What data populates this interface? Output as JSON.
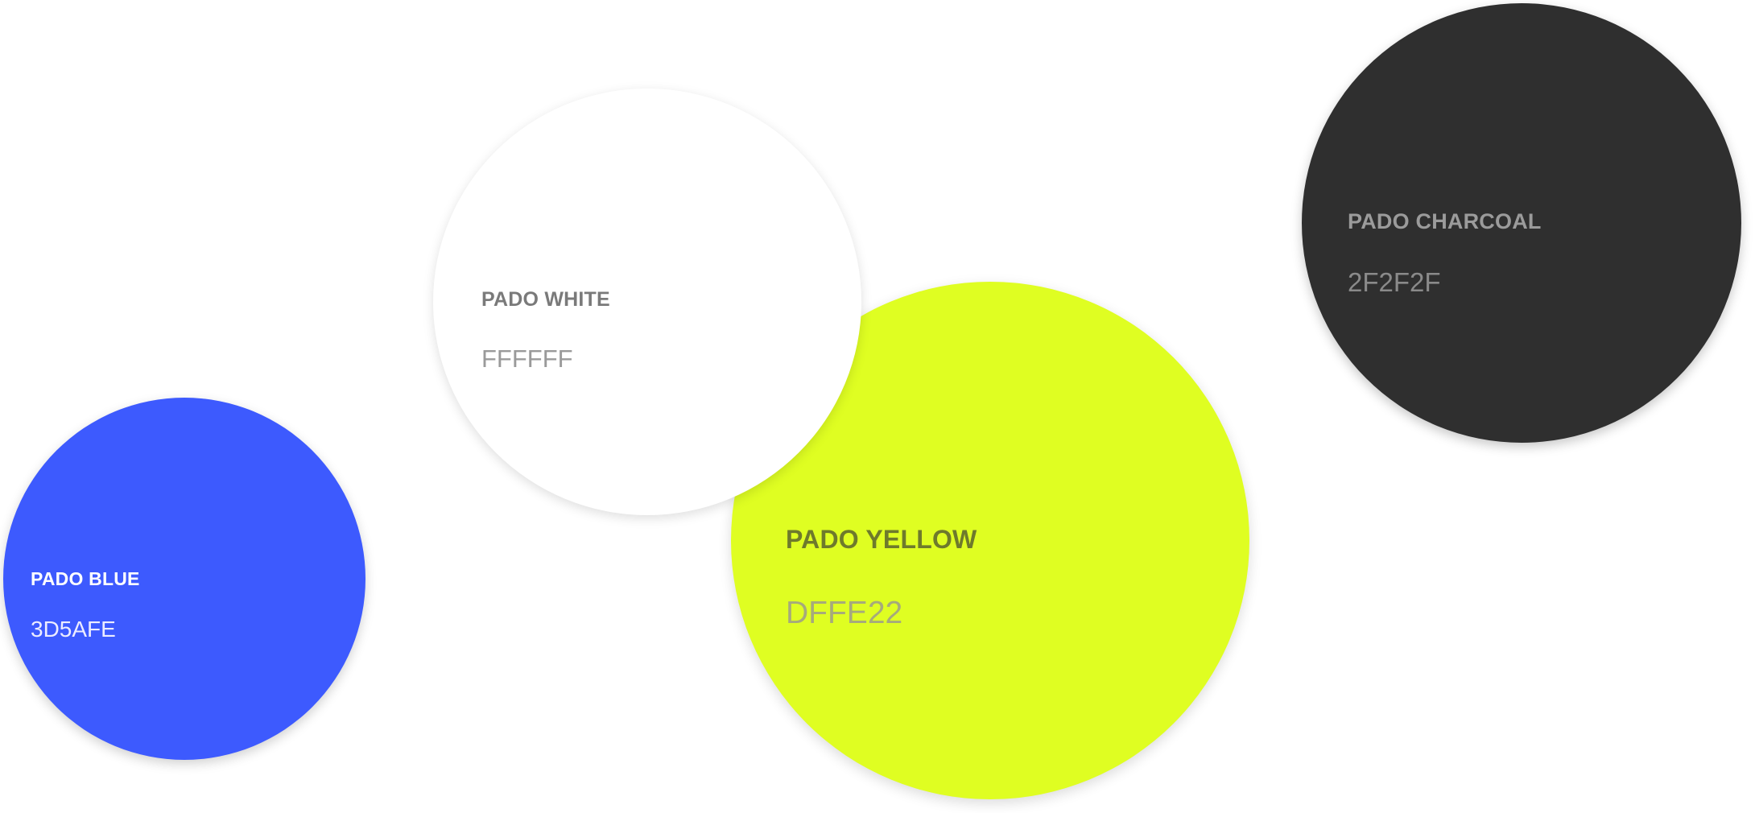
{
  "swatches": {
    "white": {
      "name": "PADO WHITE",
      "hex": "FFFFFF",
      "fill": "#FFFFFF"
    },
    "yellow": {
      "name": "PADO YELLOW",
      "hex": "DFFE22",
      "fill": "#DFFE22"
    },
    "blue": {
      "name": "PADO BLUE",
      "hex": "3D5AFE",
      "fill": "#3D5AFE"
    },
    "charcoal": {
      "name": "PADO CHARCOAL",
      "hex": "2F2F2F",
      "fill": "#2F2F2F"
    }
  }
}
